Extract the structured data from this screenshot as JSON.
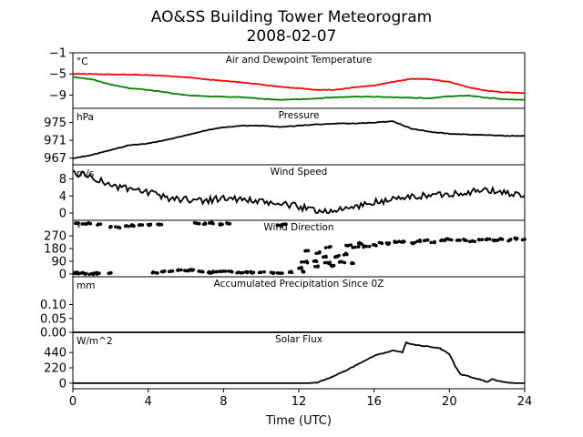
{
  "title": "AO&SS Building Tower Meteorogram",
  "subtitle": "2008-02-07",
  "colors": {
    "temperature": "#ff0000",
    "dewpoint": "#008000",
    "line": "#000000"
  },
  "chart_data": [
    {
      "type": "line",
      "title": "Air and Dewpoint Temperature",
      "unit": "°C",
      "xlabel": "",
      "ylim": [
        -11.5,
        -1
      ],
      "yticks": [
        -1,
        -5,
        -9
      ],
      "xlim": [
        0,
        24
      ],
      "x": [
        0,
        1,
        2,
        3,
        4,
        5,
        6,
        7,
        8,
        9,
        10,
        11,
        12,
        13,
        14,
        15,
        16,
        17,
        18,
        19,
        20,
        21,
        22,
        23,
        24
      ],
      "series": [
        {
          "name": "",
          "color": "#ff0000",
          "values": [
            -5.0,
            -5.0,
            -5.1,
            -5.1,
            -5.2,
            -5.4,
            -5.6,
            -6.0,
            -6.3,
            -6.6,
            -7.0,
            -7.4,
            -7.7,
            -8.0,
            -8.0,
            -7.5,
            -7.2,
            -6.5,
            -5.9,
            -6.0,
            -6.5,
            -7.5,
            -8.2,
            -8.5,
            -8.6
          ]
        },
        {
          "name": "",
          "color": "#008000",
          "values": [
            -5.6,
            -6.0,
            -7.0,
            -7.7,
            -8.0,
            -8.5,
            -9.0,
            -9.2,
            -9.3,
            -9.4,
            -9.7,
            -9.9,
            -9.8,
            -9.6,
            -9.4,
            -9.3,
            -9.3,
            -9.4,
            -9.5,
            -9.6,
            -9.2,
            -9.1,
            -9.5,
            -9.8,
            -9.9
          ]
        }
      ]
    },
    {
      "type": "line",
      "title": "Pressure",
      "unit": "hPa",
      "ylim": [
        965.5,
        978.2
      ],
      "yticks": [
        975,
        971,
        967
      ],
      "xlim": [
        0,
        24
      ],
      "x": [
        0,
        1,
        2,
        3,
        4,
        5,
        6,
        7,
        8,
        9,
        10,
        11,
        12,
        13,
        14,
        15,
        16,
        17,
        18,
        19,
        20,
        21,
        22,
        23,
        24
      ],
      "series": [
        {
          "name": "",
          "values": [
            967.0,
            967.7,
            968.8,
            969.9,
            970.3,
            971.1,
            972.1,
            973.2,
            973.9,
            974.3,
            974.3,
            974.0,
            974.3,
            974.6,
            974.8,
            974.8,
            975.0,
            975.3,
            973.6,
            972.9,
            972.5,
            972.3,
            972.2,
            972.0,
            972.0
          ]
        }
      ]
    },
    {
      "type": "line",
      "title": "Wind Speed",
      "unit": "m/s",
      "ylim": [
        -1.7,
        11.3
      ],
      "yticks": [
        8,
        4,
        0
      ],
      "xlim": [
        0,
        24
      ],
      "x": [
        0,
        1,
        2,
        3,
        4,
        5,
        6,
        7,
        8,
        9,
        10,
        11,
        12,
        13,
        14,
        15,
        16,
        17,
        18,
        19,
        20,
        21,
        22,
        23,
        24
      ],
      "series": [
        {
          "name": "",
          "values": [
            9.5,
            8.5,
            6.5,
            5.5,
            4.8,
            3.5,
            3.2,
            3.0,
            3.5,
            3.2,
            2.5,
            2.2,
            1.5,
            0.5,
            0.5,
            1.5,
            2.5,
            3.2,
            3.8,
            4.2,
            4.5,
            5.0,
            5.3,
            4.8,
            4.0
          ]
        }
      ]
    },
    {
      "type": "scatter",
      "title": "Wind Direction",
      "unit": "°",
      "ylim": [
        -20,
        380
      ],
      "yticks": [
        270,
        180,
        90,
        0
      ],
      "xlim": [
        0,
        24
      ],
      "points": [
        [
          0.1,
          5
        ],
        [
          0.4,
          5
        ],
        [
          0.7,
          3
        ],
        [
          1.0,
          2
        ],
        [
          1.4,
          4
        ],
        [
          1.9,
          4
        ],
        [
          0.3,
          360
        ],
        [
          0.6,
          355
        ],
        [
          0.9,
          358
        ],
        [
          1.4,
          352
        ],
        [
          2.0,
          335
        ],
        [
          2.4,
          330
        ],
        [
          2.8,
          340
        ],
        [
          3.2,
          345
        ],
        [
          3.6,
          348
        ],
        [
          4.0,
          350
        ],
        [
          4.6,
          352
        ],
        [
          4.4,
          8
        ],
        [
          4.8,
          15
        ],
        [
          5.2,
          20
        ],
        [
          5.6,
          25
        ],
        [
          6.0,
          22
        ],
        [
          6.4,
          30
        ],
        [
          6.8,
          18
        ],
        [
          7.2,
          10
        ],
        [
          6.6,
          358
        ],
        [
          7.0,
          355
        ],
        [
          7.4,
          360
        ],
        [
          7.8,
          352
        ],
        [
          8.2,
          358
        ],
        [
          7.6,
          15
        ],
        [
          8.0,
          20
        ],
        [
          8.4,
          18
        ],
        [
          8.8,
          12
        ],
        [
          9.2,
          15
        ],
        [
          9.6,
          10
        ],
        [
          10.0,
          12
        ],
        [
          10.6,
          8
        ],
        [
          11.0,
          345
        ],
        [
          11.2,
          352
        ],
        [
          11.0,
          5
        ],
        [
          11.5,
          12
        ],
        [
          12.0,
          40
        ],
        [
          12.2,
          20
        ],
        [
          12.3,
          85
        ],
        [
          12.5,
          165
        ],
        [
          12.8,
          90
        ],
        [
          13.0,
          55
        ],
        [
          13.1,
          150
        ],
        [
          13.3,
          120
        ],
        [
          13.5,
          80
        ],
        [
          13.6,
          190
        ],
        [
          13.8,
          60
        ],
        [
          14.0,
          125
        ],
        [
          14.3,
          85
        ],
        [
          14.5,
          140
        ],
        [
          14.6,
          200
        ],
        [
          14.8,
          75
        ],
        [
          15.0,
          190
        ],
        [
          15.3,
          215
        ],
        [
          15.6,
          195
        ],
        [
          16.0,
          205
        ],
        [
          16.4,
          220
        ],
        [
          16.8,
          215
        ],
        [
          17.2,
          225
        ],
        [
          17.6,
          230
        ],
        [
          18.0,
          220
        ],
        [
          18.4,
          235
        ],
        [
          18.8,
          240
        ],
        [
          19.2,
          228
        ],
        [
          19.6,
          240
        ],
        [
          20.0,
          245
        ],
        [
          20.4,
          238
        ],
        [
          20.8,
          240
        ],
        [
          21.2,
          232
        ],
        [
          21.6,
          242
        ],
        [
          22.0,
          248
        ],
        [
          22.4,
          236
        ],
        [
          22.8,
          246
        ],
        [
          23.2,
          240
        ],
        [
          23.6,
          252
        ],
        [
          24.0,
          246
        ]
      ]
    },
    {
      "type": "line",
      "title": "Accumulated Precipitation Since 0Z",
      "unit": "mm",
      "ylim": [
        0,
        0.2
      ],
      "yticks": [
        0.1,
        0.05,
        0.0
      ],
      "ytick_labels": [
        "0.10",
        "0.05",
        "0.00"
      ],
      "xlim": [
        0,
        24
      ],
      "x": [
        0,
        24
      ],
      "series": [
        {
          "name": "",
          "values": [
            0.0,
            0.0
          ]
        }
      ]
    },
    {
      "type": "line",
      "title": "Solar Flux",
      "unit": "W/m^2",
      "ylim": [
        -80,
        730
      ],
      "yticks": [
        440,
        220,
        0
      ],
      "xlim": [
        0,
        24
      ],
      "x": [
        0,
        6,
        12.5,
        13,
        13.5,
        14,
        14.5,
        15,
        15.5,
        16,
        16.5,
        17,
        17.5,
        17.7,
        18,
        18.5,
        19,
        19.5,
        20,
        20.3,
        20.6,
        21,
        21.5,
        22,
        22.3,
        22.6,
        23,
        23.5,
        24
      ],
      "series": [
        {
          "name": "",
          "values": [
            0,
            0,
            0,
            10,
            60,
            120,
            180,
            250,
            320,
            390,
            430,
            470,
            440,
            580,
            560,
            540,
            520,
            500,
            420,
            250,
            120,
            100,
            60,
            20,
            60,
            30,
            10,
            0,
            0
          ]
        }
      ]
    }
  ],
  "x_axis": {
    "label": "Time (UTC)",
    "ticks": [
      0,
      4,
      8,
      12,
      16,
      20,
      24
    ],
    "tick_labels": [
      "0",
      "4",
      "8",
      "12",
      "16",
      "20",
      "24"
    ]
  }
}
